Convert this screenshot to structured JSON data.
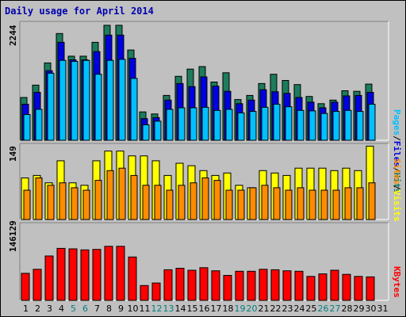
{
  "title": "Daily usage for April 2014",
  "panels": {
    "top": {
      "max_label": "2244",
      "legend": [
        "Pages",
        "/",
        "Files",
        "/",
        "Hits"
      ]
    },
    "middle": {
      "max_label": "149",
      "legend": [
        "Sites",
        "/",
        "Visits"
      ]
    },
    "bottom": {
      "max_label": "146129",
      "legend": [
        "KBytes"
      ]
    }
  },
  "colors": {
    "hits": "#1c7c5c",
    "files": "#0000e0",
    "pages": "#00c0ff",
    "visits": "#ffff00",
    "sites": "#ff8c00",
    "kbytes": "#ff0000",
    "weekend": "#007f7f",
    "weekday": "#000000"
  },
  "chart_data": {
    "type": "bar",
    "x": [
      "1",
      "2",
      "3",
      "4",
      "5",
      "6",
      "7",
      "8",
      "9",
      "10",
      "11",
      "12",
      "13",
      "14",
      "15",
      "16",
      "17",
      "18",
      "19",
      "20",
      "21",
      "22",
      "23",
      "24",
      "25",
      "26",
      "27",
      "28",
      "29",
      "30",
      "31"
    ],
    "weekend_days": [
      "5",
      "6",
      "12",
      "13",
      "19",
      "20",
      "26",
      "27"
    ],
    "series": [
      {
        "name": "Hits",
        "panel": "top",
        "values": [
          830,
          1070,
          1500,
          2070,
          1630,
          1630,
          1900,
          2230,
          2230,
          1750,
          550,
          510,
          870,
          1240,
          1380,
          1430,
          1130,
          1310,
          790,
          870,
          1100,
          1280,
          1160,
          1080,
          850,
          710,
          780,
          960,
          950,
          1090,
          0
        ]
      },
      {
        "name": "Files",
        "panel": "top",
        "values": [
          700,
          930,
          1350,
          1900,
          1560,
          1560,
          1720,
          2040,
          2040,
          1590,
          420,
          440,
          780,
          1100,
          1040,
          1230,
          1050,
          950,
          710,
          780,
          980,
          940,
          910,
          830,
          740,
          630,
          740,
          860,
          870,
          930,
          0
        ]
      },
      {
        "name": "Pages",
        "panel": "top",
        "values": [
          500,
          600,
          1300,
          1550,
          1530,
          1550,
          1280,
          1550,
          1570,
          1200,
          300,
          370,
          600,
          630,
          630,
          640,
          580,
          600,
          530,
          560,
          640,
          700,
          650,
          580,
          570,
          520,
          560,
          580,
          560,
          700,
          0
        ]
      },
      {
        "name": "Visits",
        "panel": "middle",
        "values": [
          85,
          90,
          75,
          120,
          75,
          70,
          120,
          140,
          140,
          130,
          130,
          120,
          90,
          115,
          110,
          100,
          90,
          95,
          70,
          65,
          100,
          95,
          90,
          105,
          105,
          105,
          100,
          105,
          100,
          150,
          0
        ]
      },
      {
        "name": "Sites",
        "panel": "middle",
        "values": [
          60,
          85,
          70,
          75,
          65,
          60,
          80,
          100,
          105,
          90,
          70,
          70,
          60,
          70,
          75,
          85,
          80,
          60,
          60,
          65,
          70,
          65,
          60,
          65,
          60,
          60,
          60,
          65,
          65,
          75,
          0
        ]
      },
      {
        "name": "KBytes",
        "panel": "bottom",
        "values": [
          53000,
          61000,
          87000,
          102000,
          101000,
          99000,
          100000,
          106000,
          106000,
          85000,
          29000,
          34000,
          60000,
          63000,
          59000,
          64000,
          58000,
          49000,
          57000,
          57000,
          61000,
          60000,
          58000,
          57000,
          47000,
          52000,
          59000,
          51000,
          47000,
          46000,
          0
        ]
      }
    ],
    "ylim_top": [
      0,
      2244
    ],
    "ylim_middle": [
      0,
      149
    ],
    "ylim_bottom": [
      0,
      146129
    ]
  }
}
